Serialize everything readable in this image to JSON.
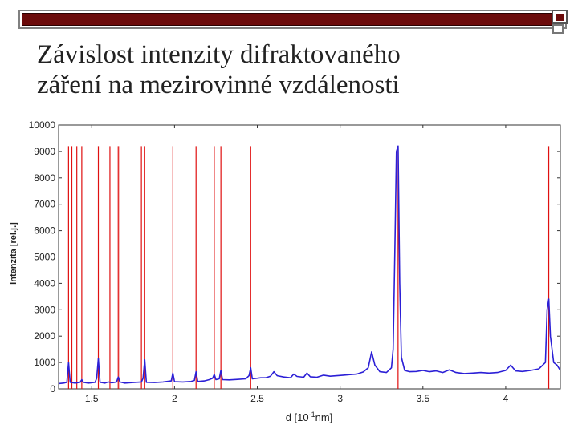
{
  "slide": {
    "title_line1": "Závislost intenzity difraktovaného",
    "title_line2": "záření na mezirovinné vzdálenosti"
  },
  "colors": {
    "accent_dark_red": "#6b0a0a",
    "spectrum_line": "#2b1fd6",
    "reference_lines": "#e01010"
  },
  "chart_data": {
    "type": "line",
    "title": "",
    "xlabel": "d [10",
    "xlabel_sup": "-1",
    "xlabel_tail": "nm]",
    "ylabel": "Intenzita [rel.j.]",
    "xlim": [
      1.3,
      4.33
    ],
    "ylim": [
      0,
      10000
    ],
    "x_ticks": [
      1.5,
      2,
      2.5,
      3,
      3.5,
      4
    ],
    "x_tick_labels": [
      "1.5",
      "2",
      "2.5",
      "3",
      "3.5",
      "4"
    ],
    "y_ticks": [
      0,
      1000,
      2000,
      3000,
      4000,
      5000,
      6000,
      7000,
      8000,
      9000,
      10000
    ],
    "y_tick_labels": [
      "0",
      "1000",
      "2000",
      "3000",
      "4000",
      "5000",
      "6000",
      "7000",
      "8000",
      "9000",
      "10000"
    ],
    "grid": false,
    "reference_lines_top": 9200,
    "reference_lines_x": [
      1.36,
      1.38,
      1.41,
      1.44,
      1.54,
      1.61,
      1.66,
      1.67,
      1.8,
      1.82,
      1.99,
      2.13,
      2.24,
      2.28,
      2.46,
      3.35,
      4.26
    ],
    "series": [
      {
        "points": [
          [
            1.3,
            200
          ],
          [
            1.33,
            220
          ],
          [
            1.35,
            250
          ],
          [
            1.36,
            1000
          ],
          [
            1.37,
            250
          ],
          [
            1.4,
            220
          ],
          [
            1.43,
            250
          ],
          [
            1.44,
            350
          ],
          [
            1.45,
            250
          ],
          [
            1.48,
            220
          ],
          [
            1.52,
            250
          ],
          [
            1.53,
            400
          ],
          [
            1.54,
            1150
          ],
          [
            1.55,
            250
          ],
          [
            1.58,
            220
          ],
          [
            1.6,
            260
          ],
          [
            1.62,
            230
          ],
          [
            1.65,
            260
          ],
          [
            1.66,
            450
          ],
          [
            1.67,
            260
          ],
          [
            1.7,
            220
          ],
          [
            1.75,
            240
          ],
          [
            1.8,
            260
          ],
          [
            1.81,
            400
          ],
          [
            1.82,
            1100
          ],
          [
            1.83,
            250
          ],
          [
            1.88,
            240
          ],
          [
            1.93,
            260
          ],
          [
            1.98,
            300
          ],
          [
            1.99,
            600
          ],
          [
            2.0,
            270
          ],
          [
            2.05,
            260
          ],
          [
            2.1,
            280
          ],
          [
            2.12,
            320
          ],
          [
            2.13,
            650
          ],
          [
            2.14,
            280
          ],
          [
            2.18,
            300
          ],
          [
            2.21,
            350
          ],
          [
            2.23,
            400
          ],
          [
            2.24,
            550
          ],
          [
            2.25,
            350
          ],
          [
            2.27,
            380
          ],
          [
            2.28,
            700
          ],
          [
            2.29,
            350
          ],
          [
            2.33,
            340
          ],
          [
            2.38,
            360
          ],
          [
            2.43,
            380
          ],
          [
            2.45,
            500
          ],
          [
            2.46,
            800
          ],
          [
            2.47,
            380
          ],
          [
            2.52,
            420
          ],
          [
            2.55,
            420
          ],
          [
            2.58,
            480
          ],
          [
            2.6,
            650
          ],
          [
            2.62,
            500
          ],
          [
            2.66,
            450
          ],
          [
            2.7,
            420
          ],
          [
            2.72,
            560
          ],
          [
            2.74,
            470
          ],
          [
            2.78,
            440
          ],
          [
            2.8,
            600
          ],
          [
            2.82,
            460
          ],
          [
            2.86,
            440
          ],
          [
            2.9,
            520
          ],
          [
            2.94,
            480
          ],
          [
            2.98,
            500
          ],
          [
            3.02,
            520
          ],
          [
            3.06,
            540
          ],
          [
            3.1,
            560
          ],
          [
            3.14,
            640
          ],
          [
            3.17,
            800
          ],
          [
            3.19,
            1400
          ],
          [
            3.21,
            900
          ],
          [
            3.24,
            650
          ],
          [
            3.28,
            620
          ],
          [
            3.31,
            800
          ],
          [
            3.32,
            1500
          ],
          [
            3.33,
            5000
          ],
          [
            3.34,
            9000
          ],
          [
            3.35,
            9200
          ],
          [
            3.36,
            4000
          ],
          [
            3.37,
            1200
          ],
          [
            3.39,
            700
          ],
          [
            3.42,
            650
          ],
          [
            3.46,
            660
          ],
          [
            3.5,
            700
          ],
          [
            3.54,
            650
          ],
          [
            3.58,
            680
          ],
          [
            3.62,
            620
          ],
          [
            3.66,
            720
          ],
          [
            3.7,
            620
          ],
          [
            3.75,
            580
          ],
          [
            3.8,
            600
          ],
          [
            3.85,
            620
          ],
          [
            3.9,
            600
          ],
          [
            3.95,
            620
          ],
          [
            4.0,
            700
          ],
          [
            4.03,
            900
          ],
          [
            4.06,
            680
          ],
          [
            4.1,
            660
          ],
          [
            4.15,
            700
          ],
          [
            4.2,
            760
          ],
          [
            4.24,
            1000
          ],
          [
            4.25,
            3000
          ],
          [
            4.26,
            3400
          ],
          [
            4.27,
            2000
          ],
          [
            4.29,
            1000
          ],
          [
            4.31,
            900
          ],
          [
            4.33,
            700
          ]
        ]
      }
    ]
  }
}
